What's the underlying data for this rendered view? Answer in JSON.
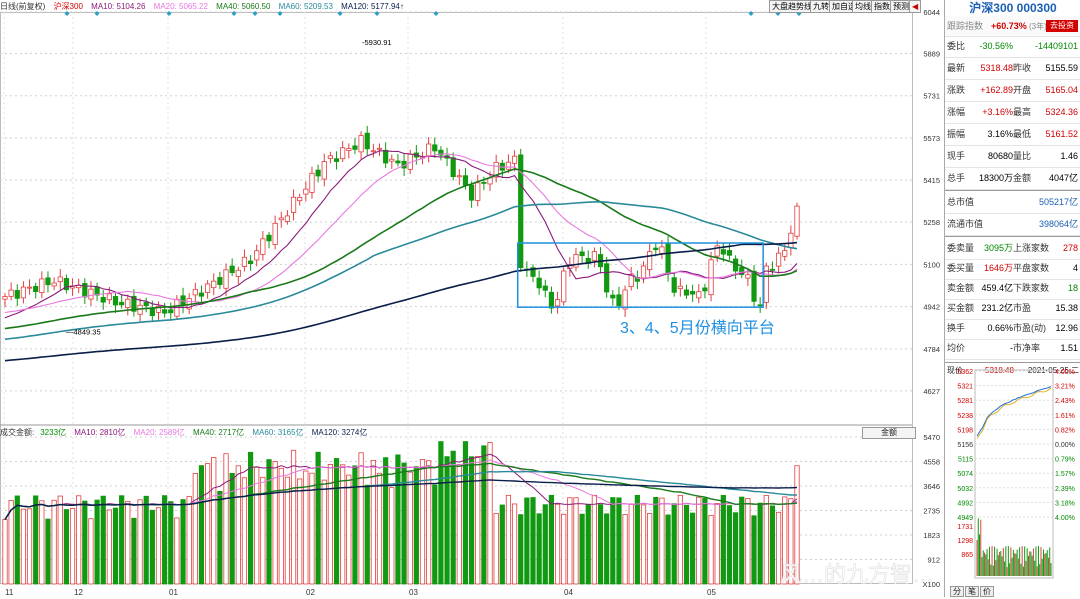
{
  "main_legend": {
    "title": "日线(前复权)",
    "index": "沪深300",
    "ma10": "MA10: 5104.26",
    "ma20": "MA20: 5065.22",
    "ma40": "MA40: 5060.50",
    "ma60": "MA60: 5209.53",
    "ma120": "MA120: 5177.94↑"
  },
  "toolbar": [
    "大盘趋势线",
    "九转",
    "加自选",
    "均线",
    "指数",
    "预测"
  ],
  "price_axis": [
    "6044",
    "5889",
    "5731",
    "5573",
    "5415",
    "5258",
    "5100",
    "4942",
    "4784",
    "4627"
  ],
  "price_labels": {
    "high": "5930.91",
    "low": "4849.35"
  },
  "annotation": "3、4、5月份横向平台",
  "vol_legend": {
    "title": "成交金额:",
    "value": "3233亿",
    "ma10": "MA10: 2810亿",
    "ma20": "MA20: 2589亿",
    "ma40": "MA40: 2717亿",
    "ma60": "MA60: 3165亿",
    "ma120": "MA120: 3274亿"
  },
  "vol_button": "金额",
  "vol_axis": [
    "5470",
    "4558",
    "3646",
    "2735",
    "1823",
    "912",
    "X100"
  ],
  "x_axis": [
    "11",
    "12",
    "01",
    "02",
    "03",
    "04",
    "05"
  ],
  "watermark": "风…的九方智…",
  "panel": {
    "title": "沪深300 000300",
    "track_label": "跟踪指数",
    "track_value": "+60.73%",
    "track_sub": "(3年)",
    "track_button": "去投资",
    "rows": [
      {
        "l1": "委比",
        "v1": "-30.56%",
        "l2": "",
        "v2": "-14409101"
      },
      {
        "l1": "最新",
        "v1": "5318.48",
        "l2": "昨收",
        "v2": "5155.59"
      },
      {
        "l1": "涨跌",
        "v1": "+162.89",
        "l2": "开盘",
        "v2": "5165.04"
      },
      {
        "l1": "涨幅",
        "v1": "+3.16%",
        "l2": "最高",
        "v2": "5324.36"
      },
      {
        "l1": "振幅",
        "v1": "3.16%",
        "l2": "最低",
        "v2": "5161.52"
      },
      {
        "l1": "现手",
        "v1": "80680",
        "l2": "量比",
        "v2": "1.46"
      },
      {
        "l1": "总手",
        "v1": "18300万",
        "l2": "金额",
        "v2": "4047亿"
      }
    ],
    "cap_rows": [
      {
        "l": "总市值",
        "v": "505217亿"
      },
      {
        "l": "流通市值",
        "v": "398064亿"
      }
    ],
    "rows2": [
      {
        "l1": "委卖量",
        "v1": "3095万",
        "l2": "上涨家数",
        "v2": "278"
      },
      {
        "l1": "委买量",
        "v1": "1646万",
        "l2": "平盘家数",
        "v2": "4"
      },
      {
        "l1": "卖金额",
        "v1": "459.4亿",
        "l2": "下跌家数",
        "v2": "18"
      },
      {
        "l1": "买金额",
        "v1": "231.2亿",
        "l2": "市盈",
        "v2": "15.38"
      },
      {
        "l1": "换手",
        "v1": "0.66%",
        "l2": "市盈(动)",
        "v2": "12.96"
      },
      {
        "l1": "均价",
        "v1": "-",
        "l2": "市净率",
        "v2": "1.51"
      }
    ],
    "now_label": "现价",
    "now_value": "5318.48",
    "now_date": "2021-05-25,二",
    "mini_prices": [
      "5362",
      "5321",
      "5281",
      "5238",
      "5198",
      "5156",
      "5115",
      "5074",
      "5032",
      "4992",
      "4949"
    ],
    "mini_pcts": [
      "4.00%",
      "3.21%",
      "2.43%",
      "1.61%",
      "0.82%",
      "0.00%",
      "0.79%",
      "1.57%",
      "2.39%",
      "3.18%",
      "4.00%"
    ],
    "mini_vol": [
      "1731",
      "1298",
      "865"
    ],
    "tabs": [
      "分",
      "笔",
      "价"
    ]
  },
  "colors": {
    "up": "#e33e3e",
    "down": "#119911",
    "ma10": "#8a1a7a",
    "ma20": "#e878e0",
    "ma40": "#1a7a1a",
    "ma60": "#2a8a9a",
    "ma120": "#0a1e4a",
    "box": "#1e90e0"
  }
}
